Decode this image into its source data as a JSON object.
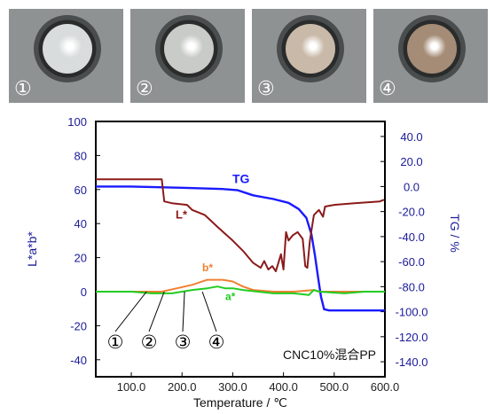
{
  "photos": [
    {
      "label": "①",
      "tone": "#d8dcdc"
    },
    {
      "label": "②",
      "tone": "#c9cbc8"
    },
    {
      "label": "③",
      "tone": "#c9b9a8"
    },
    {
      "label": "④",
      "tone": "#a58c76"
    }
  ],
  "chart_data": {
    "type": "line",
    "xlabel": "Temperature / ℃",
    "ylabel_left": "L*a*b*",
    "ylabel_right": "TG / %",
    "xlim": [
      30,
      600
    ],
    "ylim_left": [
      -50,
      100
    ],
    "ylim_right": [
      -152,
      52
    ],
    "x_ticks": [
      "100.0",
      "200.0",
      "300.0",
      "400.0",
      "500.0",
      "600.0"
    ],
    "left_ticks": [
      "100",
      "80",
      "60",
      "40",
      "20",
      "0",
      "-20",
      "-40"
    ],
    "right_ticks": [
      "40.0",
      "20.0",
      "0.0",
      "-20.0",
      "-40.0",
      "-60.0",
      "-80.0",
      "-100.0",
      "-120.0",
      "-140.0"
    ],
    "annotation": "CNC10%混合PP",
    "markers": [
      {
        "label": "①",
        "x": 130
      },
      {
        "label": "②",
        "x": 165
      },
      {
        "label": "③",
        "x": 205
      },
      {
        "label": "④",
        "x": 240
      }
    ],
    "series": [
      {
        "name": "TG",
        "axis": "right",
        "color": "#1a1aff",
        "points": [
          [
            30,
            0
          ],
          [
            100,
            0
          ],
          [
            200,
            -1
          ],
          [
            280,
            -2
          ],
          [
            310,
            -3
          ],
          [
            340,
            -7
          ],
          [
            380,
            -10
          ],
          [
            410,
            -13
          ],
          [
            430,
            -18
          ],
          [
            445,
            -25
          ],
          [
            455,
            -38
          ],
          [
            462,
            -55
          ],
          [
            468,
            -72
          ],
          [
            474,
            -88
          ],
          [
            480,
            -98
          ],
          [
            490,
            -99
          ],
          [
            600,
            -99
          ]
        ]
      },
      {
        "name": "L*",
        "axis": "left",
        "color": "#8b1a1a",
        "points": [
          [
            30,
            66
          ],
          [
            160,
            66
          ],
          [
            165,
            53
          ],
          [
            180,
            52
          ],
          [
            210,
            51
          ],
          [
            220,
            48
          ],
          [
            245,
            45
          ],
          [
            270,
            38
          ],
          [
            300,
            30
          ],
          [
            320,
            24
          ],
          [
            340,
            17
          ],
          [
            355,
            14
          ],
          [
            362,
            18
          ],
          [
            370,
            13
          ],
          [
            378,
            15
          ],
          [
            385,
            12
          ],
          [
            395,
            22
          ],
          [
            400,
            13
          ],
          [
            405,
            35
          ],
          [
            410,
            30
          ],
          [
            418,
            33
          ],
          [
            428,
            35
          ],
          [
            438,
            31
          ],
          [
            443,
            15
          ],
          [
            447,
            14
          ],
          [
            452,
            30
          ],
          [
            460,
            45
          ],
          [
            470,
            48
          ],
          [
            478,
            44
          ],
          [
            482,
            50
          ],
          [
            500,
            51
          ],
          [
            540,
            52
          ],
          [
            590,
            53
          ],
          [
            598,
            54
          ]
        ]
      },
      {
        "name": "b*",
        "axis": "left",
        "color": "#f08030",
        "points": [
          [
            30,
            0
          ],
          [
            120,
            0
          ],
          [
            160,
            0
          ],
          [
            190,
            2
          ],
          [
            220,
            4
          ],
          [
            250,
            7
          ],
          [
            280,
            7
          ],
          [
            300,
            6
          ],
          [
            320,
            3
          ],
          [
            340,
            1
          ],
          [
            380,
            0
          ],
          [
            420,
            0
          ],
          [
            460,
            1
          ],
          [
            470,
            0
          ],
          [
            600,
            0
          ]
        ]
      },
      {
        "name": "a*",
        "axis": "left",
        "color": "#22cc22",
        "points": [
          [
            30,
            0
          ],
          [
            100,
            0
          ],
          [
            140,
            -1
          ],
          [
            180,
            -1
          ],
          [
            200,
            0
          ],
          [
            220,
            1
          ],
          [
            250,
            2
          ],
          [
            270,
            3
          ],
          [
            285,
            2
          ],
          [
            300,
            2
          ],
          [
            320,
            1
          ],
          [
            350,
            0
          ],
          [
            380,
            -1
          ],
          [
            420,
            -1
          ],
          [
            450,
            -2
          ],
          [
            460,
            1
          ],
          [
            470,
            0
          ],
          [
            520,
            -1
          ],
          [
            560,
            0
          ],
          [
            600,
            0
          ]
        ]
      }
    ]
  }
}
